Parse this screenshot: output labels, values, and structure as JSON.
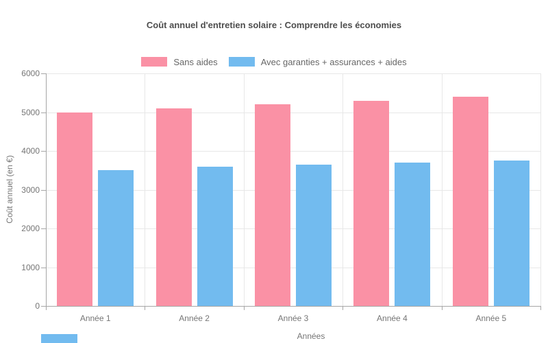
{
  "chart_data": {
    "type": "bar",
    "title": "Coût annuel d'entretien solaire : Comprendre les économies",
    "categories": [
      "Année 1",
      "Année 2",
      "Année 3",
      "Année 4",
      "Année 5"
    ],
    "series": [
      {
        "name": "Sans aides",
        "color": "#FA91A5",
        "values": [
          5000,
          5100,
          5200,
          5300,
          5400
        ]
      },
      {
        "name": "Avec garanties + assurances + aides",
        "color": "#72BBEF",
        "values": [
          3500,
          3600,
          3650,
          3700,
          3750
        ]
      }
    ],
    "xlabel": "Années",
    "ylabel": "Coût annuel (en €)",
    "ylim": [
      0,
      6000
    ],
    "yticks": [
      0,
      1000,
      2000,
      3000,
      4000,
      5000,
      6000
    ],
    "grid": true,
    "legend_position": "top"
  },
  "style": {
    "grid_color": "#e7e7e7",
    "axis_color": "#a6a6a6",
    "tick_label_color": "#757575",
    "legend_text_color": "#666666",
    "title_color": "#4d4d4d",
    "background": "#ffffff"
  },
  "bottom_left_rect": {
    "color": "#72BBEF"
  }
}
